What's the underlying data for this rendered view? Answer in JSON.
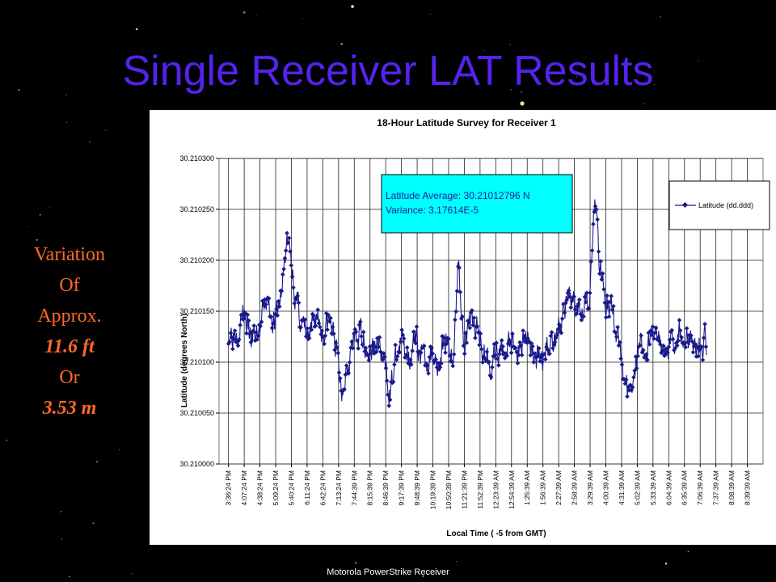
{
  "slide": {
    "title": "Single Receiver LAT Results",
    "side_note": [
      "Variation",
      "Of",
      "Approx.",
      "11.6 ft",
      "Or",
      "3.53 m"
    ],
    "footer": "Motorola PowerStrike Receiver"
  },
  "colors": {
    "title": "#5522ee",
    "side_note": "#ff6a26",
    "series": "#1a1a8c",
    "annotation_fill": "#00ffff"
  },
  "chart_data": {
    "type": "line",
    "title": "18-Hour Latitude Survey for Receiver 1",
    "xlabel": "Local Time ( -5 from GMT)",
    "ylabel": "Latitude (degrees North)",
    "ylim": [
      30.21,
      30.2103
    ],
    "yticks": [
      "30.210300",
      "30.210250",
      "30.210200",
      "30.210150",
      "30.210100",
      "30.210050",
      "30.210000"
    ],
    "categories": [
      "3:36:24 PM",
      "4:07:24 PM",
      "4:38:24 PM",
      "5:09:24 PM",
      "5:40:24 PM",
      "6:11:24 PM",
      "6:42:24 PM",
      "7:13:24 PM",
      "7:44:39 PM",
      "8:15:39 PM",
      "8:46:39 PM",
      "9:17:39 PM",
      "9:48:39 PM",
      "10:19:39 PM",
      "10:50:39 PM",
      "11:21:39 PM",
      "11:52:39 PM",
      "12:23:39 AM",
      "12:54:39 AM",
      "1:25:39 AM",
      "1:56:39 AM",
      "2:27:39 AM",
      "2:58:39 AM",
      "3:29:39 AM",
      "4:00:39 AM",
      "4:31:39 AM",
      "5:02:39 AM",
      "5:33:39 AM",
      "6:04:39 AM",
      "6:35:39 AM",
      "7:06:39 AM",
      "7:37:39 AM",
      "8:08:39 AM",
      "8:39:39 AM"
    ],
    "grid": true,
    "legend_position": "top-right",
    "series": [
      {
        "name": "Latitude (dd.ddd)",
        "keyframes": [
          [
            0,
            30.21013
          ],
          [
            0.6,
            30.210135
          ],
          [
            1.0,
            30.21015
          ],
          [
            1.4,
            30.21012
          ],
          [
            2.0,
            30.21013
          ],
          [
            2.4,
            30.21016
          ],
          [
            3.0,
            30.21014
          ],
          [
            3.4,
            30.21017
          ],
          [
            3.7,
            30.21022
          ],
          [
            4.0,
            30.2102
          ],
          [
            4.3,
            30.21016
          ],
          [
            4.8,
            30.21013
          ],
          [
            5.2,
            30.21012
          ],
          [
            5.6,
            30.21015
          ],
          [
            6.0,
            30.21013
          ],
          [
            6.4,
            30.21014
          ],
          [
            6.8,
            30.21012
          ],
          [
            7.2,
            30.21007
          ],
          [
            7.5,
            30.2101
          ],
          [
            8.0,
            30.21012
          ],
          [
            8.5,
            30.21013
          ],
          [
            9.0,
            30.21011
          ],
          [
            9.5,
            30.21012
          ],
          [
            10.0,
            30.21009
          ],
          [
            10.3,
            30.21007
          ],
          [
            10.6,
            30.2101
          ],
          [
            11.0,
            30.21012
          ],
          [
            11.5,
            30.21011
          ],
          [
            12.0,
            30.21012
          ],
          [
            12.4,
            30.2101
          ],
          [
            13.0,
            30.21011
          ],
          [
            13.4,
            30.2101
          ],
          [
            13.9,
            30.21013
          ],
          [
            14.3,
            30.2101
          ],
          [
            14.6,
            30.2102
          ],
          [
            15.0,
            30.21012
          ],
          [
            15.4,
            30.21014
          ],
          [
            15.9,
            30.21013
          ],
          [
            16.3,
            30.21011
          ],
          [
            16.8,
            30.2101
          ],
          [
            17.4,
            30.21011
          ],
          [
            17.9,
            30.21012
          ],
          [
            18.4,
            30.21011
          ],
          [
            18.9,
            30.21013
          ],
          [
            19.4,
            30.21011
          ],
          [
            19.9,
            30.2101
          ],
          [
            20.4,
            30.21012
          ],
          [
            20.9,
            30.21013
          ],
          [
            21.4,
            30.21015
          ],
          [
            21.9,
            30.21016
          ],
          [
            22.4,
            30.21016
          ],
          [
            23.0,
            30.21017
          ],
          [
            23.3,
            30.21026
          ],
          [
            23.6,
            30.2102
          ],
          [
            24.0,
            30.21016
          ],
          [
            24.4,
            30.21015
          ],
          [
            24.8,
            30.21012
          ],
          [
            25.2,
            30.21008
          ],
          [
            25.5,
            30.21006
          ],
          [
            25.8,
            30.2101
          ],
          [
            26.2,
            30.21012
          ],
          [
            26.6,
            30.21011
          ],
          [
            27.0,
            30.21013
          ],
          [
            27.5,
            30.21012
          ],
          [
            28.0,
            30.21012
          ],
          [
            28.6,
            30.21013
          ],
          [
            29.3,
            30.21012
          ],
          [
            30.0,
            30.21012
          ],
          [
            30.4,
            30.21012
          ]
        ],
        "min_value": 30.210042,
        "max_value": 30.210282
      }
    ],
    "annotation": [
      "Latitude Average: 30.21012796 N",
      "Variance: 3.17614E-5"
    ]
  }
}
